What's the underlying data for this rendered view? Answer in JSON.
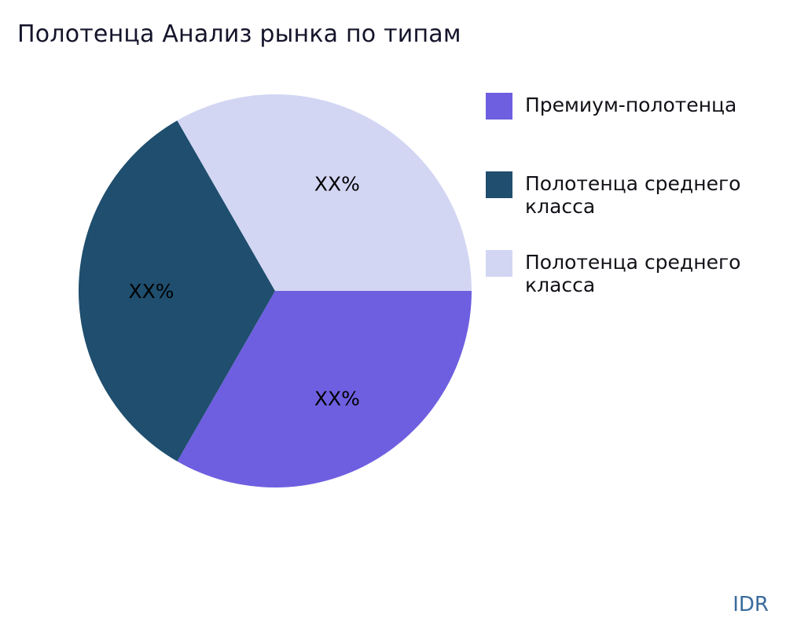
{
  "title": "Полотенца Анализ рынка по типам",
  "watermark": "IDR",
  "chart_data": {
    "type": "pie",
    "title": "Полотенца Анализ рынка по типам",
    "legend_position": "right",
    "start_angle_deg": 0,
    "direction": "clockwise",
    "slices": [
      {
        "label": "Премиум-полотенца",
        "value": 33.3,
        "display_label": "XX%",
        "color": "#6e5fe0"
      },
      {
        "label": "Полотенца среднего класса",
        "value": 33.4,
        "display_label": "XX%",
        "color": "#1f4e6e"
      },
      {
        "label": "Полотенца среднего класса",
        "value": 33.3,
        "display_label": "XX%",
        "color": "#d2d6f3"
      }
    ]
  }
}
